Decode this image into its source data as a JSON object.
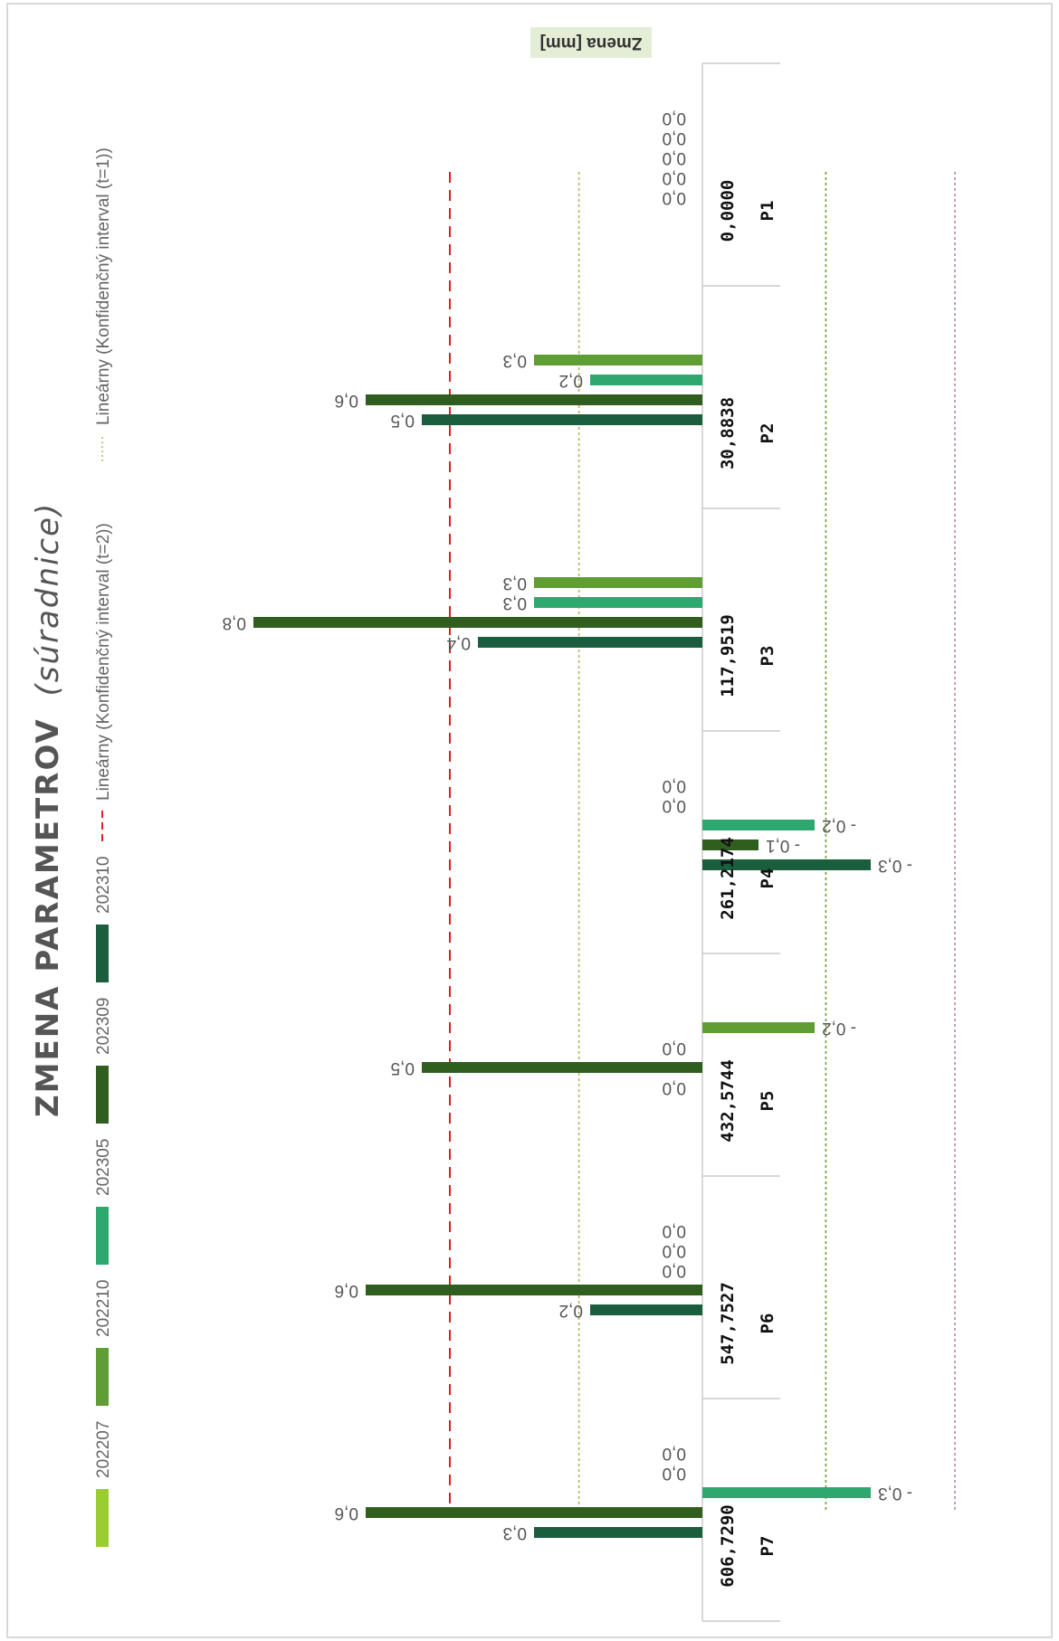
{
  "chart_data": {
    "type": "bar",
    "title": "ZMENA PARAMETROV",
    "title_suffix": "(súradnice)",
    "axis_title": "Zmena [mm]",
    "series": [
      {
        "name": "202207",
        "color": "#9ACD32",
        "values": [
          0.0,
          0.0,
          0.0,
          0.0,
          0.0,
          0.0,
          0.0
        ],
        "labels": [
          "0,0",
          "",
          "",
          "0,0",
          "",
          "0,0",
          "0,0"
        ]
      },
      {
        "name": "202210",
        "color": "#5E9E35",
        "values": [
          0.0,
          0.3,
          0.3,
          0.0,
          -0.2,
          0.0,
          0.0
        ],
        "labels": [
          "0,0",
          "0,3",
          "0,3",
          "0,0",
          "- 0,2",
          "0,0",
          "0,0"
        ]
      },
      {
        "name": "202305",
        "color": "#2EA86E",
        "values": [
          0.0,
          0.2,
          0.3,
          -0.2,
          0.0,
          0.0,
          -0.3
        ],
        "labels": [
          "0,0",
          "0,2",
          "0,3",
          "- 0,2",
          "0,0",
          "0,0",
          "- 0,3"
        ]
      },
      {
        "name": "202309",
        "color": "#2F5E1E",
        "values": [
          0.0,
          0.6,
          0.8,
          -0.1,
          0.5,
          0.6,
          0.6
        ],
        "labels": [
          "0,0",
          "0,6",
          "0,8",
          "- 0,1",
          "0,5",
          "0,6",
          "0,6"
        ]
      },
      {
        "name": "202310",
        "color": "#1B5E3D",
        "values": [
          0.0,
          0.5,
          0.4,
          -0.3,
          0.0,
          0.2,
          0.3
        ],
        "labels": [
          "0,0",
          "0,5",
          "0,4",
          "- 0,3",
          "0,0",
          "0,2",
          "0,3"
        ]
      }
    ],
    "categories": [
      "P1",
      "P2",
      "P3",
      "P4",
      "P5",
      "P6",
      "P7"
    ],
    "stations": [
      "0,0000",
      "30,8838",
      "117,9519",
      "261,2174",
      "432,5744",
      "547,7527",
      "606,7290"
    ],
    "reference_lines": [
      {
        "name": "Lineárny (Konfidenčný interval (t=2))",
        "value": 0.45,
        "color": "#E02020",
        "style": "dash"
      },
      {
        "name": "Lineárny (Konfidenčný interval (t=1))",
        "value": 0.22,
        "color": "#B5B55A",
        "style": "dot"
      },
      {
        "value": -0.22,
        "color": "#6E9E35",
        "style": "dot"
      },
      {
        "value": -0.45,
        "color": "#B088AA",
        "style": "dot"
      }
    ],
    "legend_placement": "left",
    "grid": false
  }
}
